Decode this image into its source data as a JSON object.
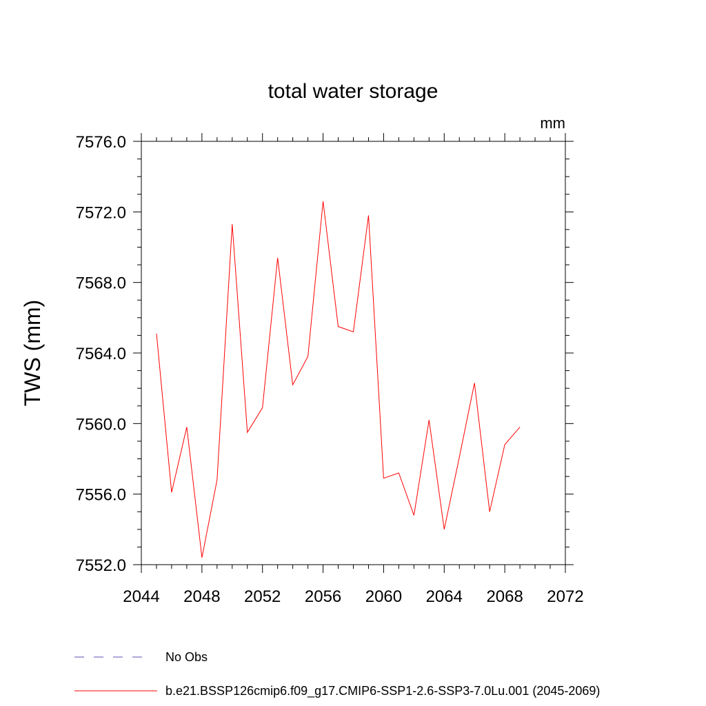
{
  "chart_data": {
    "type": "line",
    "title": "total water storage",
    "units_label": "mm",
    "ylabel": "TWS  (mm)",
    "xlabel": "",
    "xlim": [
      2044,
      2072
    ],
    "ylim": [
      7552.0,
      7576.0
    ],
    "x_ticks": [
      2044,
      2048,
      2052,
      2056,
      2060,
      2064,
      2068,
      2072
    ],
    "x_tick_labels": [
      "2044",
      "2048",
      "2052",
      "2056",
      "2060",
      "2064",
      "2068",
      "2072"
    ],
    "y_ticks": [
      7552.0,
      7556.0,
      7560.0,
      7564.0,
      7568.0,
      7572.0,
      7576.0
    ],
    "y_tick_labels": [
      "7552.0",
      "7556.0",
      "7560.0",
      "7564.0",
      "7568.0",
      "7572.0",
      "7576.0"
    ],
    "grid": false,
    "legend_position": "bottom",
    "series": [
      {
        "name": "b.e21.BSSP126cmip6.f09_g17.CMIP6-SSP1-2.6-SSP3-7.0Lu.001 (2045-2069)",
        "color": "#ff0000",
        "style": "solid",
        "x": [
          2045,
          2046,
          2047,
          2048,
          2049,
          2050,
          2051,
          2052,
          2053,
          2054,
          2055,
          2056,
          2057,
          2058,
          2059,
          2060,
          2061,
          2062,
          2063,
          2064,
          2065,
          2066,
          2067,
          2068,
          2069
        ],
        "values": [
          7565.1,
          7556.1,
          7559.8,
          7552.4,
          7556.8,
          7571.3,
          7559.5,
          7560.9,
          7569.4,
          7562.2,
          7563.8,
          7572.6,
          7565.5,
          7565.2,
          7571.8,
          7556.9,
          7557.2,
          7554.8,
          7560.2,
          7554.0,
          7558.1,
          7562.3,
          7555.0,
          7558.8,
          7559.8
        ]
      }
    ],
    "legend": [
      {
        "label": "No Obs",
        "color": "#5a4fb0",
        "style": "dashed"
      },
      {
        "label": "b.e21.BSSP126cmip6.f09_g17.CMIP6-SSP1-2.6-SSP3-7.0Lu.001 (2045-2069)",
        "color": "#ff0000",
        "style": "solid"
      }
    ]
  }
}
